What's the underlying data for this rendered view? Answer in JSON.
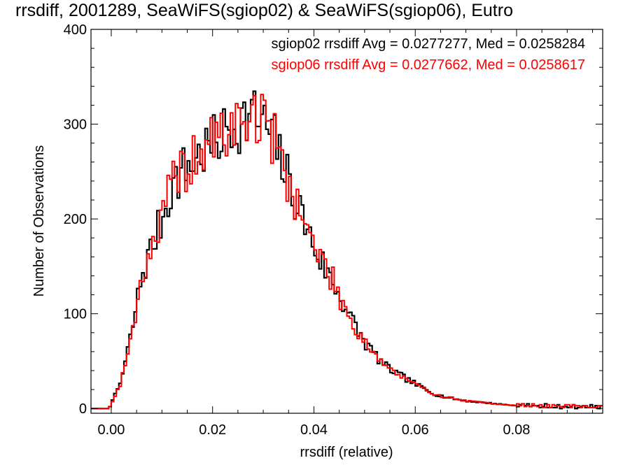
{
  "chart_data": {
    "type": "histogram-step",
    "title": "rrsdiff, 2001289, SeaWiFS(sgiop02) & SeaWiFS(sgiop06), Eutro",
    "xlabel": "rrsdiff (relative)",
    "ylabel": "Number of Observations",
    "xlim": [
      -0.004,
      0.097
    ],
    "ylim": [
      -5,
      400
    ],
    "x_ticks": [
      0.0,
      0.02,
      0.04,
      0.06,
      0.08
    ],
    "x_tick_labels": [
      "0.00",
      "0.02",
      "0.04",
      "0.06",
      "0.08"
    ],
    "y_ticks": [
      0,
      100,
      200,
      300,
      400
    ],
    "y_tick_labels": [
      "0",
      "100",
      "200",
      "300",
      "400"
    ],
    "grid": false,
    "legend_placement": "top-right",
    "bin_width": 0.0005,
    "series": [
      {
        "name": "sgiop02",
        "color": "#000000",
        "label": "sgiop02 rrsdiff Avg = 0.0277277, Med = 0.0258284",
        "anchors": [
          [
            -0.004,
            0
          ],
          [
            -0.0005,
            0
          ],
          [
            0.0,
            5
          ],
          [
            0.002,
            30
          ],
          [
            0.004,
            80
          ],
          [
            0.006,
            140
          ],
          [
            0.008,
            170
          ],
          [
            0.01,
            200
          ],
          [
            0.012,
            235
          ],
          [
            0.014,
            250
          ],
          [
            0.016,
            260
          ],
          [
            0.018,
            270
          ],
          [
            0.02,
            278
          ],
          [
            0.022,
            288
          ],
          [
            0.024,
            298
          ],
          [
            0.026,
            305
          ],
          [
            0.028,
            310
          ],
          [
            0.03,
            300
          ],
          [
            0.032,
            285
          ],
          [
            0.034,
            255
          ],
          [
            0.036,
            225
          ],
          [
            0.038,
            200
          ],
          [
            0.04,
            170
          ],
          [
            0.042,
            150
          ],
          [
            0.044,
            130
          ],
          [
            0.046,
            110
          ],
          [
            0.048,
            88
          ],
          [
            0.05,
            70
          ],
          [
            0.052,
            57
          ],
          [
            0.054,
            45
          ],
          [
            0.056,
            38
          ],
          [
            0.058,
            32
          ],
          [
            0.06,
            26
          ],
          [
            0.062,
            20
          ],
          [
            0.064,
            15
          ],
          [
            0.066,
            12
          ],
          [
            0.068,
            10
          ],
          [
            0.07,
            8
          ],
          [
            0.072,
            7
          ],
          [
            0.074,
            6
          ],
          [
            0.076,
            5
          ],
          [
            0.08,
            3
          ],
          [
            0.085,
            2
          ],
          [
            0.09,
            1
          ],
          [
            0.097,
            1
          ]
        ],
        "seed": 7,
        "noise": 0.055
      },
      {
        "name": "sgiop06",
        "color": "#ff0000",
        "label": "sgiop06 rrsdiff Avg = 0.0277662, Med = 0.0258617",
        "anchors": [
          [
            -0.004,
            0
          ],
          [
            -0.0005,
            0
          ],
          [
            0.0,
            4
          ],
          [
            0.002,
            28
          ],
          [
            0.004,
            78
          ],
          [
            0.006,
            138
          ],
          [
            0.008,
            172
          ],
          [
            0.01,
            198
          ],
          [
            0.012,
            238
          ],
          [
            0.014,
            252
          ],
          [
            0.016,
            258
          ],
          [
            0.018,
            272
          ],
          [
            0.02,
            280
          ],
          [
            0.022,
            290
          ],
          [
            0.024,
            296
          ],
          [
            0.026,
            304
          ],
          [
            0.028,
            312
          ],
          [
            0.03,
            302
          ],
          [
            0.032,
            288
          ],
          [
            0.034,
            252
          ],
          [
            0.036,
            228
          ],
          [
            0.038,
            198
          ],
          [
            0.04,
            172
          ],
          [
            0.042,
            152
          ],
          [
            0.044,
            132
          ],
          [
            0.046,
            108
          ],
          [
            0.048,
            86
          ],
          [
            0.05,
            72
          ],
          [
            0.052,
            58
          ],
          [
            0.054,
            46
          ],
          [
            0.056,
            38
          ],
          [
            0.058,
            31
          ],
          [
            0.06,
            25
          ],
          [
            0.062,
            20
          ],
          [
            0.064,
            15
          ],
          [
            0.066,
            12
          ],
          [
            0.068,
            10
          ],
          [
            0.07,
            8
          ],
          [
            0.072,
            7
          ],
          [
            0.074,
            6
          ],
          [
            0.076,
            5
          ],
          [
            0.08,
            3
          ],
          [
            0.085,
            2
          ],
          [
            0.09,
            1
          ],
          [
            0.097,
            1
          ]
        ],
        "seed": 19,
        "noise": 0.055
      }
    ]
  }
}
